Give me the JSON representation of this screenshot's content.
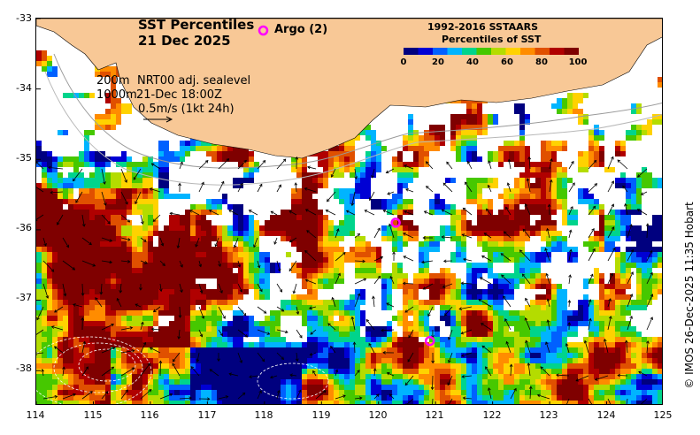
{
  "title": {
    "line1": "SST Percentiles",
    "line2": "21 Dec 2025"
  },
  "argo_legend": {
    "label": "Argo (2)",
    "marker_color": "#ff00ff"
  },
  "info": {
    "isobath_shallow": "200m",
    "isobath_deep": "1000m",
    "product": "NRT00 adj. sealevel",
    "timestamp": "21-Dec 18:00Z",
    "vector_scale": "0.5m/s (1kt 24h)"
  },
  "colorbar": {
    "title_line1": "1992-2016 SSTAARS",
    "title_line2": "Percentiles of SST",
    "ticks": [
      "0",
      "20",
      "40",
      "60",
      "80",
      "100"
    ],
    "colors": [
      "#00007f",
      "#0000d4",
      "#0060ff",
      "#00b4ff",
      "#00d48c",
      "#46c800",
      "#b4dc00",
      "#ffd200",
      "#ff8c00",
      "#e05000",
      "#b00000",
      "#7f0000"
    ]
  },
  "axes": {
    "y_ticks": [
      "-33",
      "-34",
      "-35",
      "-36",
      "-37",
      "-38"
    ],
    "x_ticks": [
      "114",
      "115",
      "116",
      "117",
      "118",
      "119",
      "120",
      "121",
      "122",
      "123",
      "124",
      "125"
    ]
  },
  "argo_floats": [
    {
      "lon": 120.3,
      "lat": -35.9
    },
    {
      "lon": 120.9,
      "lat": -37.58
    }
  ],
  "credit": "© IMOS 26-Dec-2025 11:35 Hobart",
  "colors": {
    "land": "#f8c896",
    "ocean_nodata": "#ffffff"
  }
}
